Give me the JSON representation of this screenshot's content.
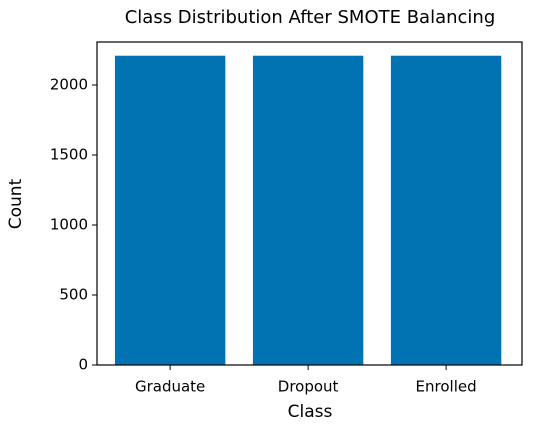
{
  "chart_data": {
    "type": "bar",
    "title": "Class Distribution After SMOTE Balancing",
    "x_label": "Class",
    "y_label": "Count",
    "categories": [
      "Graduate",
      "Dropout",
      "Enrolled"
    ],
    "values": [
      2209,
      2209,
      2209
    ],
    "color": "#0173b2",
    "ylim": [
      0,
      2307
    ],
    "yticks": [
      0,
      500,
      1000,
      1500,
      2000
    ],
    "grid": false
  }
}
